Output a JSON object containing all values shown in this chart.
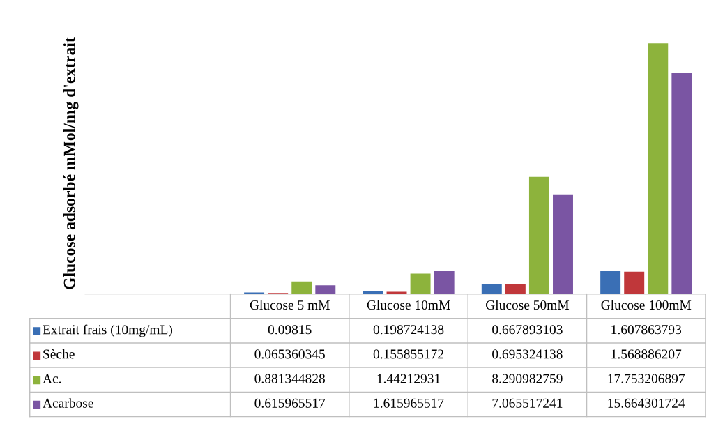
{
  "chart_data": {
    "type": "bar",
    "annotations": [
      "Glucose adsorbé mMol/mg d'extrait"
    ],
    "categories": [
      "Glucose 5 mM",
      "Glucose 10mM",
      "Glucose 50mM",
      "Glucose 100mM"
    ],
    "series": [
      {
        "name": "Extrait frais (10mg/mL)",
        "color": "#3a6fb5",
        "values": [
          0.09815,
          0.198724138,
          0.667893103,
          1.607863793
        ]
      },
      {
        "name": "Sèche",
        "color": "#c0373a",
        "values": [
          0.065360345,
          0.155855172,
          0.695324138,
          1.568886207
        ]
      },
      {
        "name": "Ac.",
        "color": "#8db33c",
        "values": [
          0.881344828,
          1.44212931,
          8.290982759,
          17.753206897
        ]
      },
      {
        "name": "Acarbose",
        "color": "#7a55a3",
        "values": [
          0.615965517,
          1.615965517,
          7.065517241,
          15.664301724
        ]
      }
    ],
    "data_labels": true,
    "legend": "bottom left"
  }
}
